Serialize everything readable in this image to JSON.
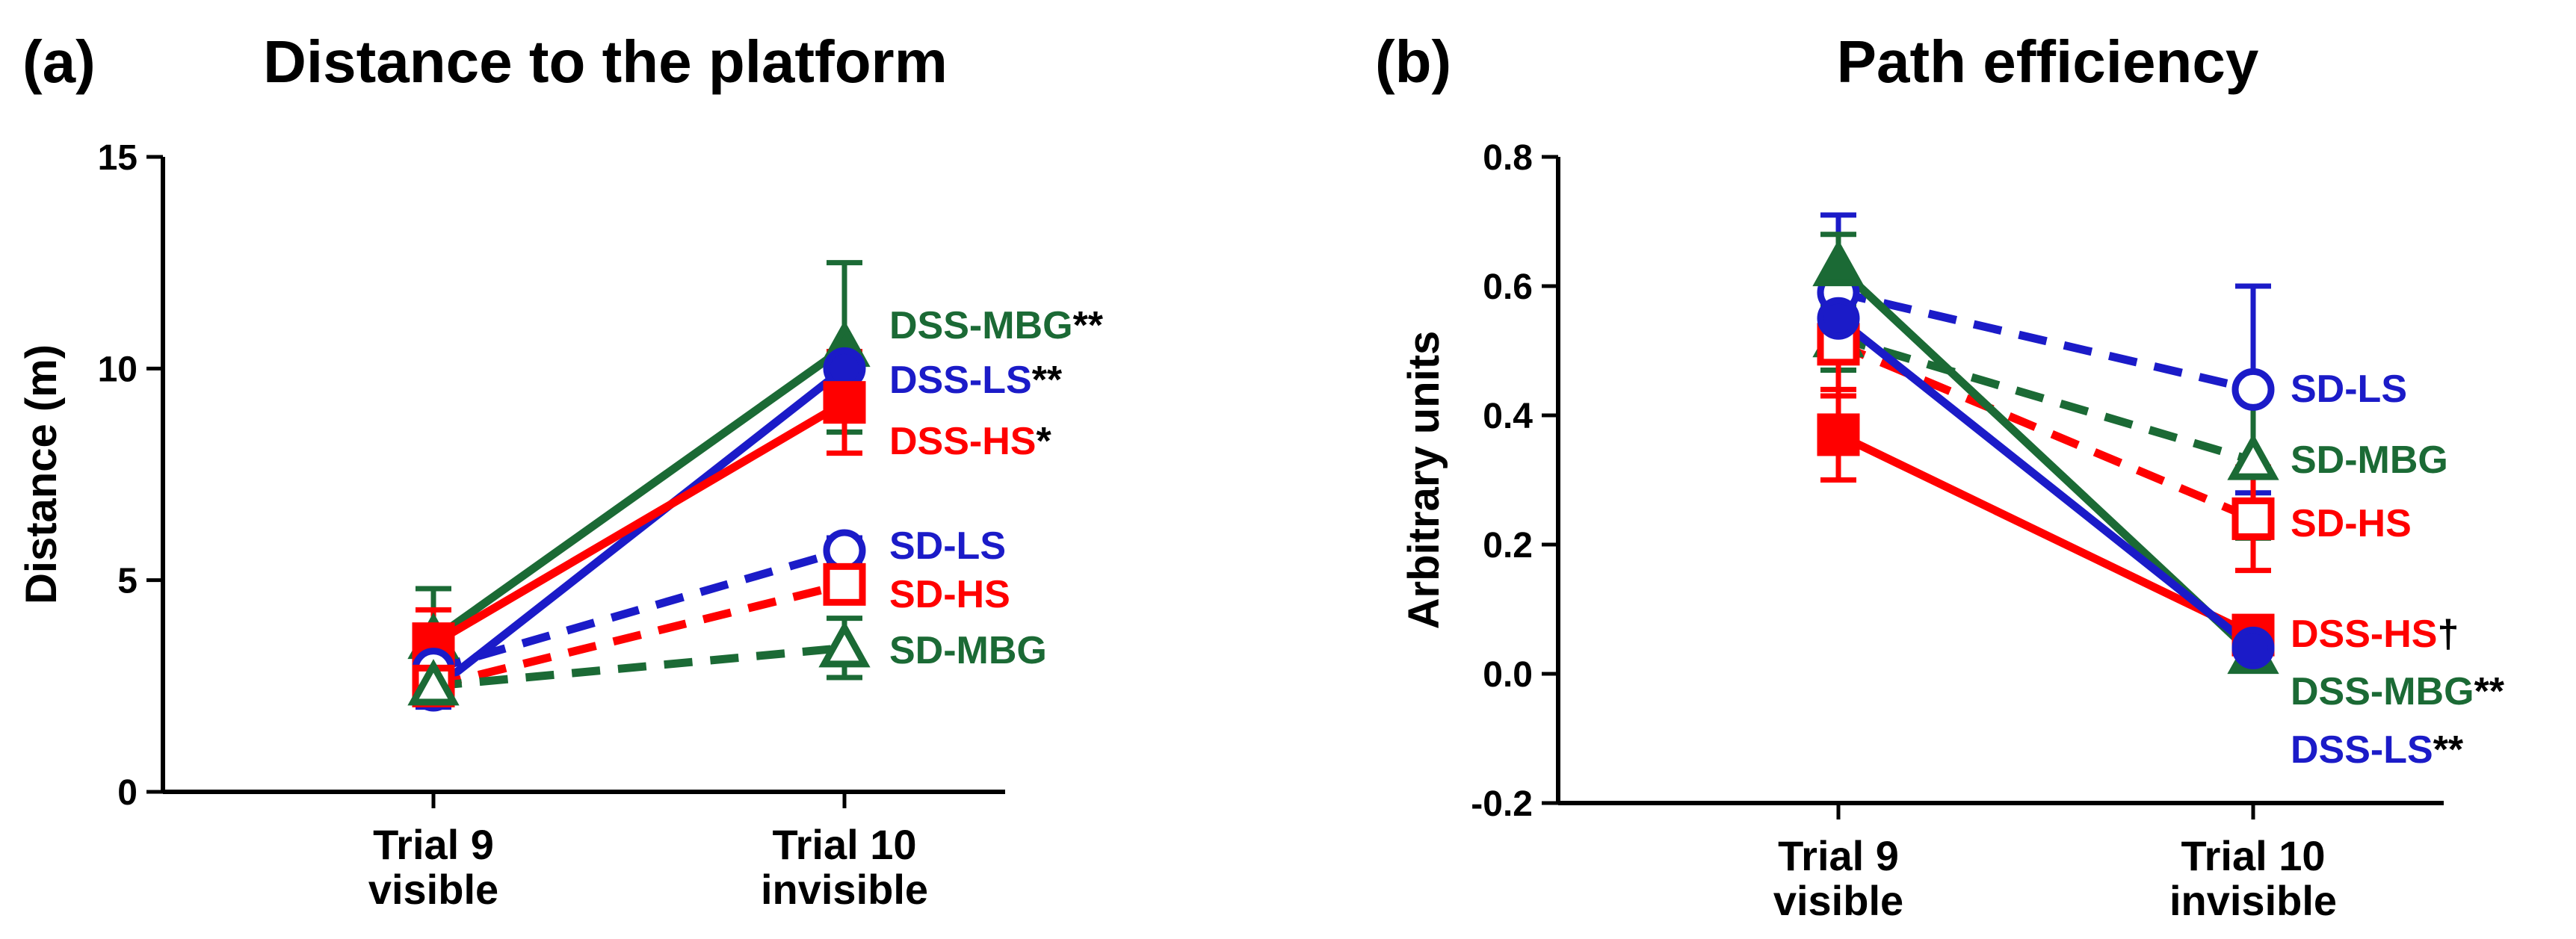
{
  "chart_data": [
    {
      "type": "line",
      "panel_label": "(a)",
      "title": "Distance to the platform",
      "ylabel": "Distance (m)",
      "xlabel": "",
      "ylim": [
        0,
        15
      ],
      "yticks": [
        "0",
        "5",
        "10",
        "15"
      ],
      "categories": [
        [
          "Trial 9",
          "visible"
        ],
        [
          "Trial 10",
          "invisible"
        ]
      ],
      "series": [
        {
          "name": "DSS-MBG",
          "sig": "**",
          "color": "#1b6a35",
          "dash": false,
          "marker": "filled-triangle",
          "values": [
            3.6,
            10.5
          ],
          "err": [
            1.2,
            2.0
          ]
        },
        {
          "name": "DSS-LS",
          "sig": "**",
          "color": "#1b1bc8",
          "dash": false,
          "marker": "filled-circle",
          "values": [
            2.4,
            10.0
          ],
          "err": [
            0.4,
            0.4
          ]
        },
        {
          "name": "DSS-HS",
          "sig": "*",
          "color": "#ff0000",
          "dash": false,
          "marker": "filled-square",
          "values": [
            3.5,
            9.2
          ],
          "err": [
            0.8,
            1.2
          ]
        },
        {
          "name": "SD-LS",
          "sig": "",
          "color": "#1b1bc8",
          "dash": true,
          "marker": "open-circle",
          "values": [
            2.9,
            5.7
          ],
          "err": [
            0.3,
            0.3
          ]
        },
        {
          "name": "SD-HS",
          "sig": "",
          "color": "#ff0000",
          "dash": true,
          "marker": "open-square",
          "values": [
            2.5,
            4.9
          ],
          "err": [
            0.2,
            0.2
          ]
        },
        {
          "name": "SD-MBG",
          "sig": "",
          "color": "#1b6a35",
          "dash": true,
          "marker": "open-triangle",
          "values": [
            2.5,
            3.4
          ],
          "err": [
            0.2,
            0.7
          ]
        }
      ]
    },
    {
      "type": "line",
      "panel_label": "(b)",
      "title": "Path efficiency",
      "ylabel": "Arbitrary units",
      "xlabel": "",
      "ylim": [
        -0.2,
        0.8
      ],
      "yticks": [
        "-0.2",
        "0.0",
        "0.2",
        "0.4",
        "0.6",
        "0.8"
      ],
      "categories": [
        [
          "Trial 9",
          "visible"
        ],
        [
          "Trial 10",
          "invisible"
        ]
      ],
      "series": [
        {
          "name": "SD-LS",
          "sig": "",
          "color": "#1b1bc8",
          "dash": true,
          "marker": "open-circle",
          "values": [
            0.59,
            0.44
          ],
          "err": [
            0.12,
            0.16
          ]
        },
        {
          "name": "SD-MBG",
          "sig": "",
          "color": "#1b6a35",
          "dash": true,
          "marker": "open-triangle",
          "values": [
            0.52,
            0.33
          ],
          "err": [
            0.05,
            0.12
          ]
        },
        {
          "name": "SD-HS",
          "sig": "",
          "color": "#ff0000",
          "dash": true,
          "marker": "open-square",
          "values": [
            0.51,
            0.24
          ],
          "err": [
            0.08,
            0.08
          ]
        },
        {
          "name": "DSS-HS",
          "sig": "†",
          "color": "#ff0000",
          "dash": false,
          "marker": "filled-square",
          "values": [
            0.37,
            0.06
          ],
          "err": [
            0.07,
            0.02
          ]
        },
        {
          "name": "DSS-MBG",
          "sig": "**",
          "color": "#1b6a35",
          "dash": false,
          "marker": "filled-triangle",
          "values": [
            0.63,
            0.03
          ],
          "err": [
            0.05,
            0.02
          ]
        },
        {
          "name": "DSS-LS",
          "sig": "**",
          "color": "#1b1bc8",
          "dash": false,
          "marker": "filled-circle",
          "values": [
            0.55,
            0.04
          ],
          "err": [
            0.05,
            0.02
          ]
        }
      ]
    }
  ]
}
